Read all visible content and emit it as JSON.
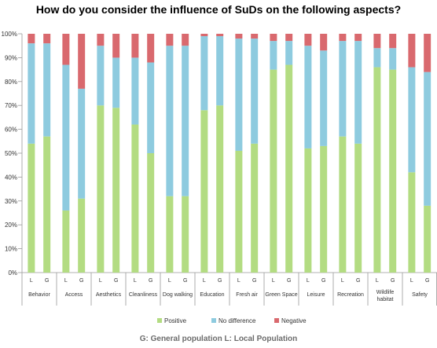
{
  "title": "How do you consider the influence of SuDs on the following aspects?",
  "caption": "G: General population L: Local Population",
  "colors": {
    "positive": "#b3dc82",
    "no_difference": "#8ecbdf",
    "negative": "#d9696e"
  },
  "chart_data": {
    "type": "bar",
    "stacked": true,
    "ylim": [
      0,
      100
    ],
    "yticks": [
      "0%",
      "10%",
      "20%",
      "30%",
      "40%",
      "50%",
      "60%",
      "70%",
      "80%",
      "90%",
      "100%"
    ],
    "legend_placement": "bottom",
    "categories": [
      "Behavior",
      "Access",
      "Aesthetics",
      "Cleanliness",
      "Dog walking",
      "Education",
      "Fresh air",
      "Green Space",
      "Leisure",
      "Recreation",
      "Wildlife habitat",
      "Safety"
    ],
    "populations": [
      "L",
      "G"
    ],
    "series": [
      {
        "name": "Positive",
        "values": [
          [
            54,
            57
          ],
          [
            26,
            31
          ],
          [
            70,
            69
          ],
          [
            62,
            50
          ],
          [
            32,
            32
          ],
          [
            68,
            70
          ],
          [
            51,
            54
          ],
          [
            85,
            87
          ],
          [
            52,
            53
          ],
          [
            57,
            54
          ],
          [
            86,
            85
          ],
          [
            42,
            28
          ]
        ]
      },
      {
        "name": "No difference",
        "values": [
          [
            42,
            39
          ],
          [
            61,
            46
          ],
          [
            25,
            21
          ],
          [
            28,
            38
          ],
          [
            63,
            63
          ],
          [
            31,
            29
          ],
          [
            47,
            44
          ],
          [
            12,
            10
          ],
          [
            43,
            40
          ],
          [
            40,
            43
          ],
          [
            8,
            9
          ],
          [
            44,
            56
          ]
        ]
      },
      {
        "name": "Negative",
        "values": [
          [
            4,
            4
          ],
          [
            13,
            23
          ],
          [
            5,
            10
          ],
          [
            10,
            12
          ],
          [
            5,
            5
          ],
          [
            1,
            1
          ],
          [
            2,
            2
          ],
          [
            3,
            3
          ],
          [
            5,
            7
          ],
          [
            3,
            3
          ],
          [
            6,
            6
          ],
          [
            14,
            16
          ]
        ]
      }
    ]
  }
}
